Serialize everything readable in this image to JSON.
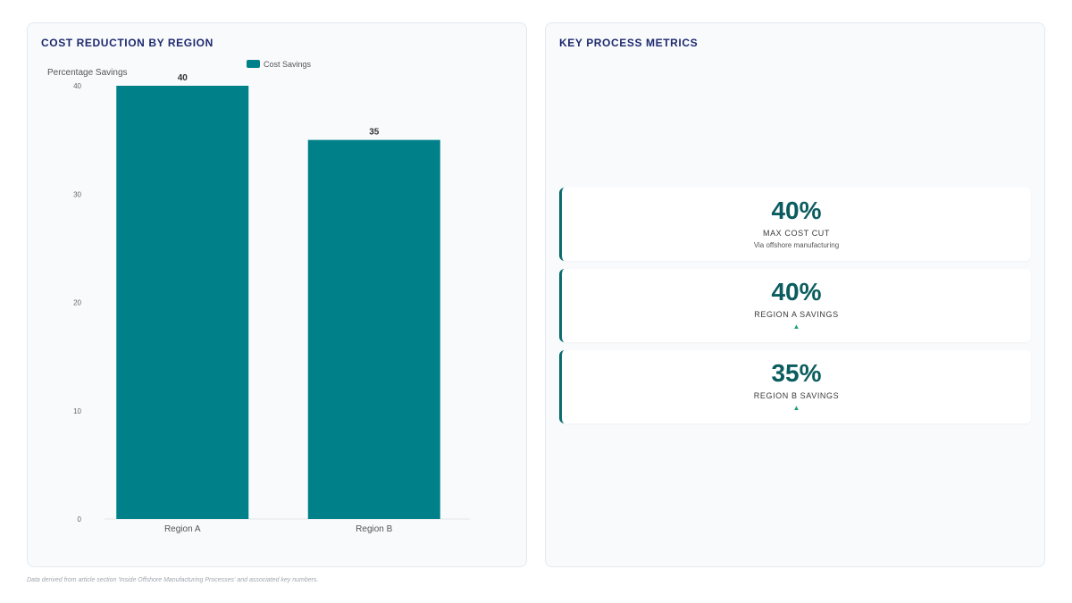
{
  "chart_panel": {
    "title": "COST REDUCTION BY REGION"
  },
  "metrics_panel": {
    "title": "KEY PROCESS METRICS"
  },
  "chart_data": {
    "type": "bar",
    "categories": [
      "Region A",
      "Region B"
    ],
    "series": [
      {
        "name": "Cost Savings",
        "values": [
          40,
          35
        ]
      }
    ],
    "ylabel": "Percentage Savings",
    "xlabel": "",
    "ylim": [
      0,
      40
    ],
    "yticks": [
      0,
      10,
      20,
      30,
      40
    ],
    "data_labels": [
      "40",
      "35"
    ],
    "grid": false,
    "legend": "top-center",
    "bar_color": "#00818a"
  },
  "metrics": [
    {
      "value": "40%",
      "label": "MAX COST CUT",
      "sub": "Via offshore manufacturing",
      "trend": ""
    },
    {
      "value": "40%",
      "label": "REGION A SAVINGS",
      "sub": "",
      "trend": "▲"
    },
    {
      "value": "35%",
      "label": "REGION B SAVINGS",
      "sub": "",
      "trend": "▲"
    }
  ],
  "footer": {
    "note": "Data derived from article section 'Inside Offshore Manufacturing Processes' and associated key numbers."
  },
  "colors": {
    "accent": "#0b6b6f",
    "title": "#1e2a6e",
    "trend": "#1aa37a"
  }
}
